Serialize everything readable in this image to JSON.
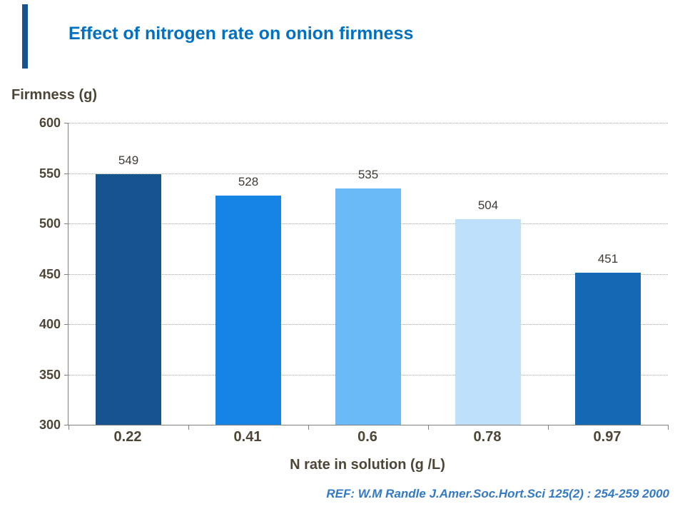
{
  "title": "Effect of nitrogen rate on onion firmness",
  "footer": {
    "ref": "REF: W.M Randle  J.Amer.Soc.Hort.Sci 125(2) : 254-259 2000"
  },
  "chart_data": {
    "type": "bar",
    "title": "Effect of nitrogen rate on onion firmness",
    "categories": [
      "0.22",
      "0.41",
      "0.6",
      "0.78",
      "0.97"
    ],
    "values": [
      549,
      528,
      535,
      504,
      451
    ],
    "bar_colors": [
      "#17538F",
      "#1584E4",
      "#6ABAF7",
      "#BFE0FA",
      "#1568B4"
    ],
    "xlabel": "N rate in solution (g /L)",
    "ylabel": "Firmness (g)",
    "ylim": [
      300,
      600
    ],
    "yticks": [
      300,
      350,
      400,
      450,
      500,
      550,
      600
    ],
    "grid": true,
    "grid_style": "dotted",
    "legend": false,
    "value_labels_shown": true
  },
  "colors": {
    "title": "#0070C0",
    "axis_text": "#4D4637",
    "value_label": "#3F3A33",
    "ref_text": "#3379C4",
    "axis_line": "#808080",
    "grid_line": "#A6A6A6",
    "accent": "#17538F",
    "background": "#FFFFFF"
  }
}
